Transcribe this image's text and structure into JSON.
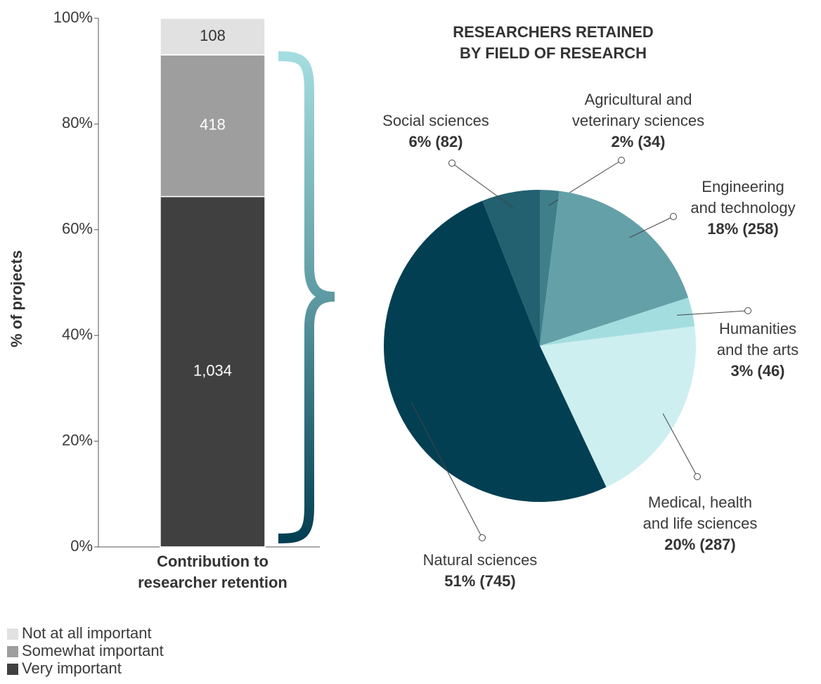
{
  "chart_data": [
    {
      "type": "stacked_percent_bar",
      "ylabel": "% of projects",
      "categories": [
        "Contribution to\nresearcher retention"
      ],
      "ylim": [
        0,
        100
      ],
      "yticks": [
        {
          "value": 0,
          "label": "0%"
        },
        {
          "value": 20,
          "label": "20%"
        },
        {
          "value": 40,
          "label": "40%"
        },
        {
          "value": 60,
          "label": "60%"
        },
        {
          "value": 80,
          "label": "80%"
        },
        {
          "value": 100,
          "label": "100%"
        }
      ],
      "series": [
        {
          "name": "Very important",
          "color": "#404041",
          "label_color": "#ffffff",
          "values": [
            1034
          ],
          "value_labels": [
            "1,034"
          ]
        },
        {
          "name": "Somewhat important",
          "color": "#9e9e9e",
          "label_color": "#ffffff",
          "values": [
            418
          ]
        },
        {
          "name": "Not at all important",
          "color": "#e1e1e1",
          "label_color": "#333333",
          "values": [
            108
          ]
        }
      ]
    },
    {
      "type": "pie",
      "title": "RESEARCHERS RETAINED\nBY FIELD OF RESEARCH",
      "categories": [
        "Agricultural and\nveterinary sciences",
        "Engineering\nand technology",
        "Humanities\nand the arts",
        "Medical, health\nand life sciences",
        "Natural sciences",
        "Social sciences"
      ],
      "values": [
        2,
        18,
        3,
        20,
        51,
        6
      ],
      "value_labels": [
        "2% (34)",
        "18% (258)",
        "3% (46)",
        "20% (287)",
        "51% (745)",
        "6% (82)"
      ],
      "colors": [
        "#3f7f8a",
        "#64a0a8",
        "#a4dde0",
        "#cdeff0",
        "#023f52",
        "#236070"
      ]
    }
  ]
}
